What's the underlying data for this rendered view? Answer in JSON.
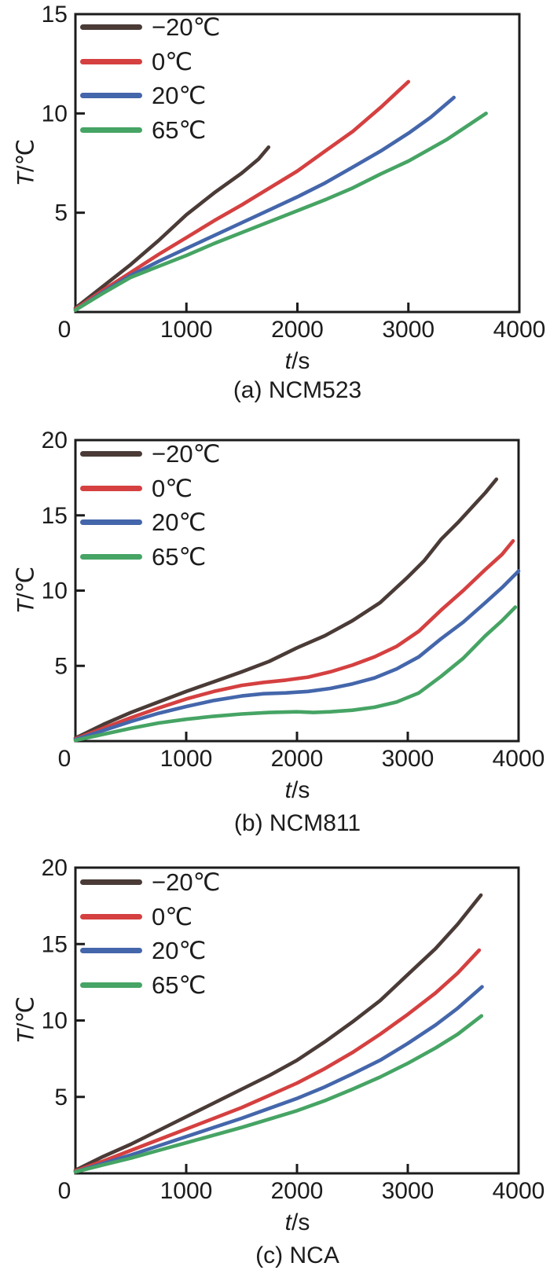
{
  "figure": {
    "background": "#ffffff",
    "axis_color": "#1c1c1c",
    "text_color": "#1c1c1c"
  },
  "chart_data": [
    {
      "type": "line",
      "caption": "(a) NCM523",
      "xlabel_italic": "t",
      "xlabel_rest": "/s",
      "ylabel_italic": "T",
      "ylabel_rest": "/℃",
      "xlim": [
        0,
        4000
      ],
      "ylim": [
        0,
        15
      ],
      "xticks": [
        0,
        1000,
        2000,
        3000,
        4000
      ],
      "xtick_labels": [
        "0",
        "1000",
        "2000",
        "3000",
        "4000"
      ],
      "yticks": [
        0,
        5,
        10,
        15
      ],
      "ytick_labels": [
        "",
        "5",
        "10",
        "15"
      ],
      "grid": false,
      "legend_position": "top-left",
      "series": [
        {
          "name": "−20℃",
          "color": "#4a3b37",
          "points": [
            [
              0,
              0.2
            ],
            [
              250,
              1.3
            ],
            [
              500,
              2.4
            ],
            [
              750,
              3.6
            ],
            [
              1000,
              4.9
            ],
            [
              1250,
              6.0
            ],
            [
              1500,
              7.0
            ],
            [
              1650,
              7.7
            ],
            [
              1740,
              8.3
            ]
          ]
        },
        {
          "name": "0℃",
          "color": "#d54040",
          "points": [
            [
              0,
              0.15
            ],
            [
              250,
              1.1
            ],
            [
              500,
              2.0
            ],
            [
              750,
              2.9
            ],
            [
              1000,
              3.75
            ],
            [
              1250,
              4.6
            ],
            [
              1500,
              5.4
            ],
            [
              1750,
              6.25
            ],
            [
              2000,
              7.1
            ],
            [
              2250,
              8.1
            ],
            [
              2500,
              9.1
            ],
            [
              2750,
              10.3
            ],
            [
              3000,
              11.6
            ]
          ]
        },
        {
          "name": "20℃",
          "color": "#4466ab",
          "points": [
            [
              0,
              0.1
            ],
            [
              250,
              1.0
            ],
            [
              500,
              1.85
            ],
            [
              750,
              2.55
            ],
            [
              1000,
              3.2
            ],
            [
              1250,
              3.85
            ],
            [
              1500,
              4.5
            ],
            [
              1750,
              5.15
            ],
            [
              2000,
              5.8
            ],
            [
              2250,
              6.5
            ],
            [
              2500,
              7.3
            ],
            [
              2750,
              8.1
            ],
            [
              3000,
              9.0
            ],
            [
              3200,
              9.8
            ],
            [
              3410,
              10.8
            ]
          ]
        },
        {
          "name": "65℃",
          "color": "#46a464",
          "points": [
            [
              0,
              0.1
            ],
            [
              250,
              0.95
            ],
            [
              500,
              1.75
            ],
            [
              750,
              2.3
            ],
            [
              1000,
              2.85
            ],
            [
              1250,
              3.45
            ],
            [
              1500,
              4.0
            ],
            [
              1750,
              4.55
            ],
            [
              2000,
              5.1
            ],
            [
              2250,
              5.65
            ],
            [
              2500,
              6.25
            ],
            [
              2750,
              6.95
            ],
            [
              3000,
              7.6
            ],
            [
              3350,
              8.7
            ],
            [
              3700,
              10.0
            ]
          ]
        }
      ]
    },
    {
      "type": "line",
      "caption": "(b) NCM811",
      "xlabel_italic": "t",
      "xlabel_rest": "/s",
      "ylabel_italic": "T",
      "ylabel_rest": "/℃",
      "xlim": [
        0,
        4000
      ],
      "ylim": [
        0,
        20
      ],
      "xticks": [
        0,
        1000,
        2000,
        3000,
        4000
      ],
      "xtick_labels": [
        "0",
        "1000",
        "2000",
        "3000",
        "4000"
      ],
      "yticks": [
        0,
        5,
        10,
        15,
        20
      ],
      "ytick_labels": [
        "",
        "5",
        "10",
        "15",
        "20"
      ],
      "grid": false,
      "legend_position": "top-left",
      "series": [
        {
          "name": "−20℃",
          "color": "#4a3b37",
          "points": [
            [
              0,
              0.2
            ],
            [
              250,
              1.1
            ],
            [
              500,
              1.9
            ],
            [
              750,
              2.6
            ],
            [
              1000,
              3.3
            ],
            [
              1250,
              3.95
            ],
            [
              1500,
              4.6
            ],
            [
              1750,
              5.3
            ],
            [
              2000,
              6.2
            ],
            [
              2250,
              7.0
            ],
            [
              2500,
              8.0
            ],
            [
              2750,
              9.2
            ],
            [
              3000,
              10.9
            ],
            [
              3150,
              12.0
            ],
            [
              3300,
              13.4
            ],
            [
              3450,
              14.5
            ],
            [
              3600,
              15.7
            ],
            [
              3700,
              16.5
            ],
            [
              3800,
              17.4
            ]
          ]
        },
        {
          "name": "0℃",
          "color": "#d54040",
          "points": [
            [
              0,
              0.15
            ],
            [
              250,
              0.85
            ],
            [
              500,
              1.55
            ],
            [
              750,
              2.2
            ],
            [
              1000,
              2.8
            ],
            [
              1250,
              3.3
            ],
            [
              1500,
              3.7
            ],
            [
              1700,
              3.9
            ],
            [
              1900,
              4.05
            ],
            [
              2100,
              4.25
            ],
            [
              2300,
              4.6
            ],
            [
              2500,
              5.05
            ],
            [
              2700,
              5.6
            ],
            [
              2900,
              6.3
            ],
            [
              3100,
              7.3
            ],
            [
              3300,
              8.7
            ],
            [
              3500,
              10.0
            ],
            [
              3700,
              11.4
            ],
            [
              3850,
              12.4
            ],
            [
              3950,
              13.3
            ]
          ]
        },
        {
          "name": "20℃",
          "color": "#4466ab",
          "points": [
            [
              0,
              0.1
            ],
            [
              250,
              0.7
            ],
            [
              500,
              1.3
            ],
            [
              750,
              1.85
            ],
            [
              1000,
              2.3
            ],
            [
              1250,
              2.7
            ],
            [
              1500,
              3.0
            ],
            [
              1700,
              3.15
            ],
            [
              1900,
              3.2
            ],
            [
              2100,
              3.3
            ],
            [
              2300,
              3.5
            ],
            [
              2500,
              3.8
            ],
            [
              2700,
              4.2
            ],
            [
              2900,
              4.8
            ],
            [
              3100,
              5.6
            ],
            [
              3300,
              6.8
            ],
            [
              3500,
              7.9
            ],
            [
              3700,
              9.2
            ],
            [
              3850,
              10.2
            ],
            [
              4000,
              11.3
            ]
          ]
        },
        {
          "name": "65℃",
          "color": "#46a464",
          "points": [
            [
              0,
              0.05
            ],
            [
              250,
              0.45
            ],
            [
              500,
              0.85
            ],
            [
              750,
              1.2
            ],
            [
              1000,
              1.45
            ],
            [
              1250,
              1.65
            ],
            [
              1500,
              1.8
            ],
            [
              1750,
              1.9
            ],
            [
              2000,
              1.95
            ],
            [
              2150,
              1.9
            ],
            [
              2300,
              1.95
            ],
            [
              2500,
              2.05
            ],
            [
              2700,
              2.25
            ],
            [
              2900,
              2.6
            ],
            [
              3100,
              3.2
            ],
            [
              3300,
              4.3
            ],
            [
              3500,
              5.5
            ],
            [
              3700,
              7.0
            ],
            [
              3850,
              8.0
            ],
            [
              3970,
              8.9
            ]
          ]
        }
      ]
    },
    {
      "type": "line",
      "caption": "(c) NCA",
      "xlabel_italic": "t",
      "xlabel_rest": "/s",
      "ylabel_italic": "T",
      "ylabel_rest": "/℃",
      "xlim": [
        0,
        4000
      ],
      "ylim": [
        0,
        20
      ],
      "xticks": [
        0,
        1000,
        2000,
        3000,
        4000
      ],
      "xtick_labels": [
        "0",
        "1000",
        "2000",
        "3000",
        "4000"
      ],
      "yticks": [
        0,
        5,
        10,
        15,
        20
      ],
      "ytick_labels": [
        "",
        "5",
        "10",
        "15",
        "20"
      ],
      "grid": false,
      "legend_position": "top-left",
      "series": [
        {
          "name": "−20℃",
          "color": "#4a3b37",
          "points": [
            [
              0,
              0.2
            ],
            [
              250,
              1.1
            ],
            [
              500,
              1.9
            ],
            [
              750,
              2.8
            ],
            [
              1000,
              3.7
            ],
            [
              1250,
              4.6
            ],
            [
              1500,
              5.5
            ],
            [
              1750,
              6.4
            ],
            [
              2000,
              7.4
            ],
            [
              2250,
              8.6
            ],
            [
              2500,
              9.9
            ],
            [
              2750,
              11.3
            ],
            [
              3000,
              13.0
            ],
            [
              3250,
              14.7
            ],
            [
              3450,
              16.3
            ],
            [
              3660,
              18.2
            ]
          ]
        },
        {
          "name": "0℃",
          "color": "#d54040",
          "points": [
            [
              0,
              0.15
            ],
            [
              250,
              0.8
            ],
            [
              500,
              1.5
            ],
            [
              750,
              2.2
            ],
            [
              1000,
              2.9
            ],
            [
              1250,
              3.6
            ],
            [
              1500,
              4.3
            ],
            [
              1750,
              5.1
            ],
            [
              2000,
              5.9
            ],
            [
              2250,
              6.85
            ],
            [
              2500,
              7.9
            ],
            [
              2750,
              9.1
            ],
            [
              3000,
              10.4
            ],
            [
              3250,
              11.8
            ],
            [
              3450,
              13.1
            ],
            [
              3645,
              14.6
            ]
          ]
        },
        {
          "name": "20℃",
          "color": "#4466ab",
          "points": [
            [
              0,
              0.1
            ],
            [
              250,
              0.65
            ],
            [
              500,
              1.2
            ],
            [
              750,
              1.8
            ],
            [
              1000,
              2.4
            ],
            [
              1250,
              3.0
            ],
            [
              1500,
              3.6
            ],
            [
              1750,
              4.25
            ],
            [
              2000,
              4.9
            ],
            [
              2250,
              5.65
            ],
            [
              2500,
              6.5
            ],
            [
              2750,
              7.4
            ],
            [
              3000,
              8.5
            ],
            [
              3250,
              9.7
            ],
            [
              3450,
              10.8
            ],
            [
              3670,
              12.2
            ]
          ]
        },
        {
          "name": "65℃",
          "color": "#46a464",
          "points": [
            [
              0,
              0.1
            ],
            [
              250,
              0.55
            ],
            [
              500,
              1.0
            ],
            [
              750,
              1.5
            ],
            [
              1000,
              2.0
            ],
            [
              1250,
              2.5
            ],
            [
              1500,
              3.0
            ],
            [
              1750,
              3.55
            ],
            [
              2000,
              4.1
            ],
            [
              2250,
              4.75
            ],
            [
              2500,
              5.5
            ],
            [
              2750,
              6.3
            ],
            [
              3000,
              7.2
            ],
            [
              3250,
              8.2
            ],
            [
              3450,
              9.1
            ],
            [
              3665,
              10.3
            ]
          ]
        }
      ]
    }
  ]
}
